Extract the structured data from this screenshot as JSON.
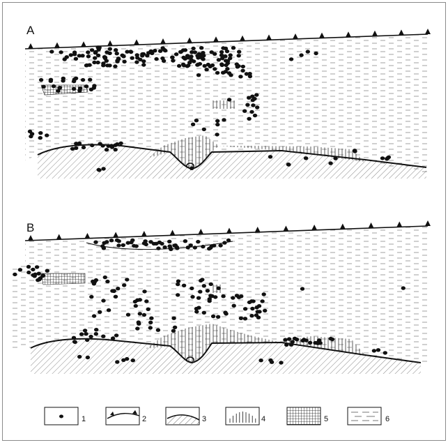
{
  "panels": [
    {
      "label": "A"
    },
    {
      "label": "B"
    }
  ],
  "legend": [
    {
      "number": "1",
      "symbol": "dot"
    },
    {
      "number": "2",
      "symbol": "line-with-triangles"
    },
    {
      "number": "3",
      "symbol": "hatched-surface"
    },
    {
      "number": "4",
      "symbol": "vertical-lines"
    },
    {
      "number": "5",
      "symbol": "grid"
    },
    {
      "number": "6",
      "symbol": "dashes"
    }
  ],
  "colors": {
    "ink": "#111111",
    "background": "#ffffff"
  }
}
